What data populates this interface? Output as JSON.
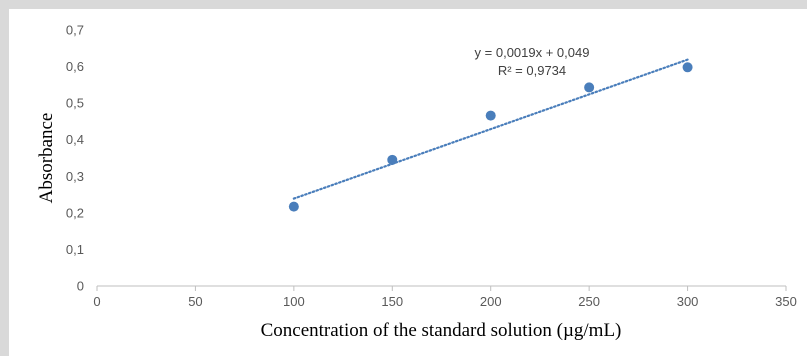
{
  "chart_data": {
    "type": "scatter",
    "xlabel": "Concentration of the standard solution (µg/mL)",
    "ylabel": "Absorbance",
    "xlim": [
      0,
      350
    ],
    "ylim": [
      0,
      0.7
    ],
    "x_ticks": [
      "0",
      "50",
      "100",
      "150",
      "200",
      "250",
      "300",
      "350"
    ],
    "y_ticks": [
      "0",
      "0,1",
      "0,2",
      "0,3",
      "0,4",
      "0,5",
      "0,6",
      "0,7"
    ],
    "grid": false,
    "series": [
      {
        "x": [
          100,
          150,
          200,
          250,
          300
        ],
        "y": [
          0.217,
          0.345,
          0.466,
          0.543,
          0.598
        ],
        "marker_color": "#4a7ebb"
      }
    ],
    "trendline": {
      "type": "linear",
      "slope": 0.0019,
      "intercept": 0.049,
      "x_range": [
        100,
        300
      ],
      "style": "dotted",
      "color": "#4a7ebb",
      "equation_label": "y = 0,0019x + 0,049",
      "r2_label": "R² = 0,9734"
    }
  }
}
